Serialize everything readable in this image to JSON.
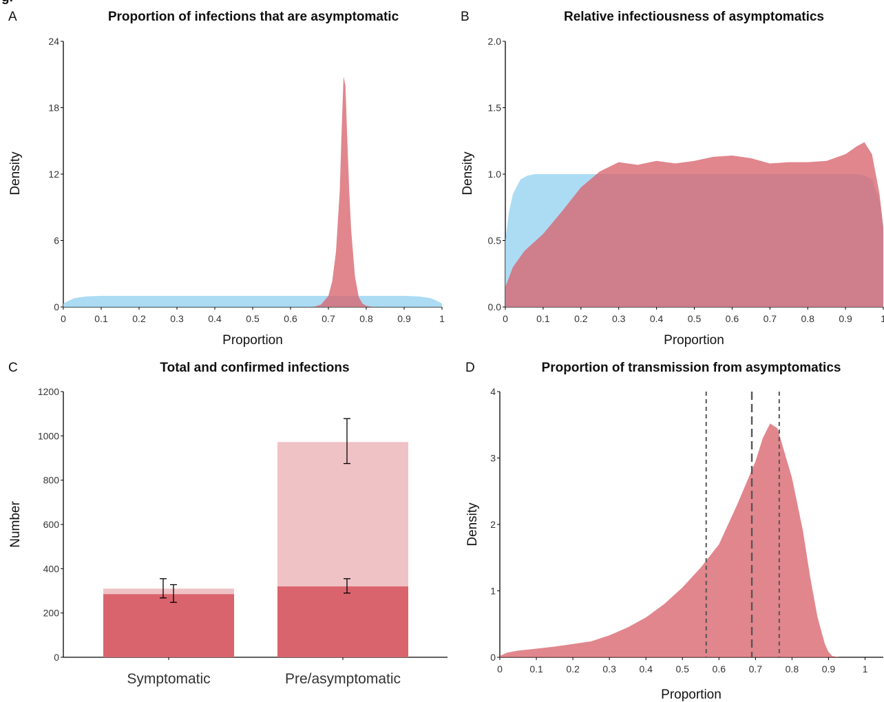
{
  "figure_header": "g.",
  "colors": {
    "blue": "#9ed6f2",
    "red": "#d9646d",
    "red_light": "#efc2c5",
    "overlap": "#b26e85",
    "dash": "#555555"
  },
  "chart_data": [
    {
      "panel": "A",
      "type": "area",
      "title": "Proportion of infections that are asymptomatic",
      "xlabel": "Proportion",
      "ylabel": "Density",
      "xlim": [
        0,
        1
      ],
      "ylim": [
        0,
        24
      ],
      "xticks": [
        "0",
        "0.1",
        "0.2",
        "0.3",
        "0.4",
        "0.5",
        "0.6",
        "0.7",
        "0.8",
        "0.9",
        "1"
      ],
      "yticks": [
        "0",
        "6",
        "12",
        "18",
        "24"
      ],
      "series": [
        {
          "color": "#9ed6f2",
          "x": [
            0,
            0.01,
            0.03,
            0.06,
            0.1,
            0.5,
            0.9,
            0.94,
            0.97,
            0.99,
            1
          ],
          "y": [
            0.3,
            0.5,
            0.8,
            0.95,
            1.0,
            1.0,
            1.0,
            0.95,
            0.8,
            0.5,
            0.3
          ]
        },
        {
          "color": "#d9646d",
          "x": [
            0.66,
            0.68,
            0.7,
            0.71,
            0.72,
            0.73,
            0.735,
            0.74,
            0.745,
            0.75,
            0.755,
            0.76,
            0.77,
            0.78,
            0.79,
            0.8,
            0.82
          ],
          "y": [
            0,
            0.2,
            1.0,
            2.3,
            5.0,
            10.5,
            16.0,
            20.8,
            20.0,
            15.0,
            10.5,
            7.0,
            2.8,
            0.9,
            0.3,
            0.1,
            0
          ]
        }
      ]
    },
    {
      "panel": "B",
      "type": "area",
      "title": "Relative infectiousness of asymptomatics",
      "xlabel": "Proportion",
      "ylabel": "Density",
      "xlim": [
        0,
        1
      ],
      "ylim": [
        0,
        2
      ],
      "xticks": [
        "0",
        "0.1",
        "0.2",
        "0.3",
        "0.4",
        "0.5",
        "0.6",
        "0.7",
        "0.8",
        "0.9",
        "1"
      ],
      "yticks": [
        "0.0",
        "0.5",
        "1.0",
        "1.5",
        "2.0"
      ],
      "series": [
        {
          "color": "#9ed6f2",
          "x": [
            0,
            0.01,
            0.02,
            0.04,
            0.06,
            0.08,
            0.1,
            0.5,
            0.9,
            0.93,
            0.95,
            0.97,
            0.99,
            1
          ],
          "y": [
            0.5,
            0.72,
            0.85,
            0.96,
            0.99,
            1.0,
            1.0,
            1.0,
            1.0,
            1.0,
            0.99,
            0.96,
            0.8,
            0.6
          ]
        },
        {
          "color": "#d9646d",
          "x": [
            0,
            0.02,
            0.05,
            0.1,
            0.15,
            0.2,
            0.25,
            0.3,
            0.35,
            0.4,
            0.45,
            0.5,
            0.55,
            0.6,
            0.65,
            0.7,
            0.75,
            0.8,
            0.85,
            0.9,
            0.93,
            0.95,
            0.97,
            0.99,
            1
          ],
          "y": [
            0.15,
            0.3,
            0.42,
            0.55,
            0.72,
            0.9,
            1.02,
            1.09,
            1.07,
            1.1,
            1.08,
            1.1,
            1.13,
            1.14,
            1.12,
            1.08,
            1.09,
            1.09,
            1.1,
            1.15,
            1.21,
            1.24,
            1.15,
            0.85,
            0.6
          ]
        }
      ]
    },
    {
      "panel": "C",
      "type": "bar",
      "title": "Total and confirmed infections",
      "ylabel": "Number",
      "ylim": [
        0,
        1200
      ],
      "yticks": [
        "0",
        "200",
        "400",
        "600",
        "800",
        "1000",
        "1200"
      ],
      "categories": [
        "Symptomatic",
        "Pre/asymptomatic"
      ],
      "series": [
        {
          "color": "#efc2c5",
          "values": [
            310,
            972
          ],
          "error": [
            [
              268,
              355
            ],
            [
              875,
              1078
            ]
          ]
        },
        {
          "color": "#d9646d",
          "values": [
            285,
            320
          ],
          "error": [
            [
              248,
              328
            ],
            [
              290,
              355
            ]
          ]
        }
      ]
    },
    {
      "panel": "D",
      "type": "area",
      "title": "Proportion of transmission from asymptomatics",
      "xlabel": "Proportion",
      "ylabel": "Density",
      "xlim": [
        0,
        1.05
      ],
      "ylim": [
        0,
        4
      ],
      "xticks": [
        "0",
        "0.1",
        "0.2",
        "0.3",
        "0.4",
        "0.5",
        "0.6",
        "0.7",
        "0.8",
        "0.9",
        "1"
      ],
      "yticks": [
        "0",
        "1",
        "2",
        "3",
        "4"
      ],
      "series": [
        {
          "color": "#d9646d",
          "x": [
            0,
            0.02,
            0.05,
            0.1,
            0.15,
            0.2,
            0.25,
            0.3,
            0.35,
            0.4,
            0.45,
            0.5,
            0.55,
            0.6,
            0.65,
            0.7,
            0.72,
            0.74,
            0.76,
            0.8,
            0.83,
            0.85,
            0.87,
            0.89,
            0.9,
            0.91,
            0.93
          ],
          "y": [
            0.02,
            0.07,
            0.1,
            0.13,
            0.16,
            0.2,
            0.24,
            0.33,
            0.45,
            0.6,
            0.8,
            1.05,
            1.35,
            1.7,
            2.3,
            2.95,
            3.3,
            3.52,
            3.45,
            2.7,
            1.9,
            1.2,
            0.6,
            0.2,
            0.08,
            0.02,
            0
          ]
        }
      ],
      "vlines": [
        {
          "x": 0.565,
          "style": "dashed"
        },
        {
          "x": 0.69,
          "style": "long-dashed"
        },
        {
          "x": 0.765,
          "style": "dashed"
        }
      ]
    }
  ]
}
